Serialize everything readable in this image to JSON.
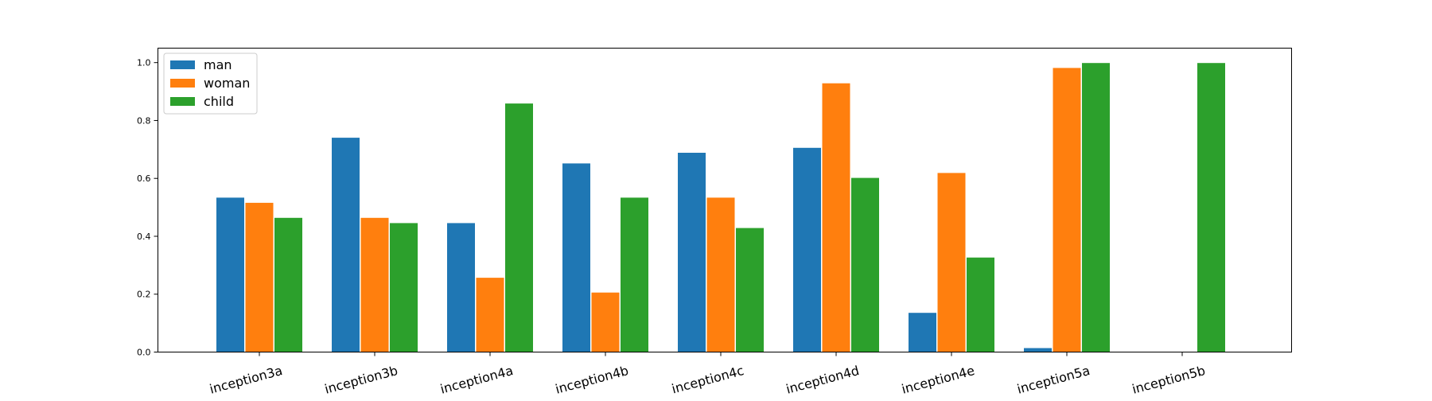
{
  "chart_data": {
    "type": "bar",
    "categories": [
      "inception3a",
      "inception3b",
      "inception4a",
      "inception4b",
      "inception4c",
      "inception4d",
      "inception4e",
      "inception5a",
      "inception5b"
    ],
    "series": [
      {
        "name": "man",
        "color": "#1f77b4",
        "values": [
          0.535,
          0.742,
          0.447,
          0.653,
          0.69,
          0.707,
          0.137,
          0.015,
          0.0
        ]
      },
      {
        "name": "woman",
        "color": "#ff7f0e",
        "values": [
          0.517,
          0.465,
          0.258,
          0.207,
          0.535,
          0.93,
          0.62,
          0.983,
          0.0
        ]
      },
      {
        "name": "child",
        "color": "#2ca02c",
        "values": [
          0.465,
          0.447,
          0.86,
          0.535,
          0.43,
          0.603,
          0.328,
          1.0,
          1.0
        ]
      }
    ],
    "yticks": [
      "0.0",
      "0.2",
      "0.4",
      "0.6",
      "0.8",
      "1.0"
    ],
    "ylim": [
      0,
      1.05
    ],
    "title": "",
    "xlabel": "",
    "ylabel": "",
    "legend_position": "top-left",
    "grid": false
  }
}
